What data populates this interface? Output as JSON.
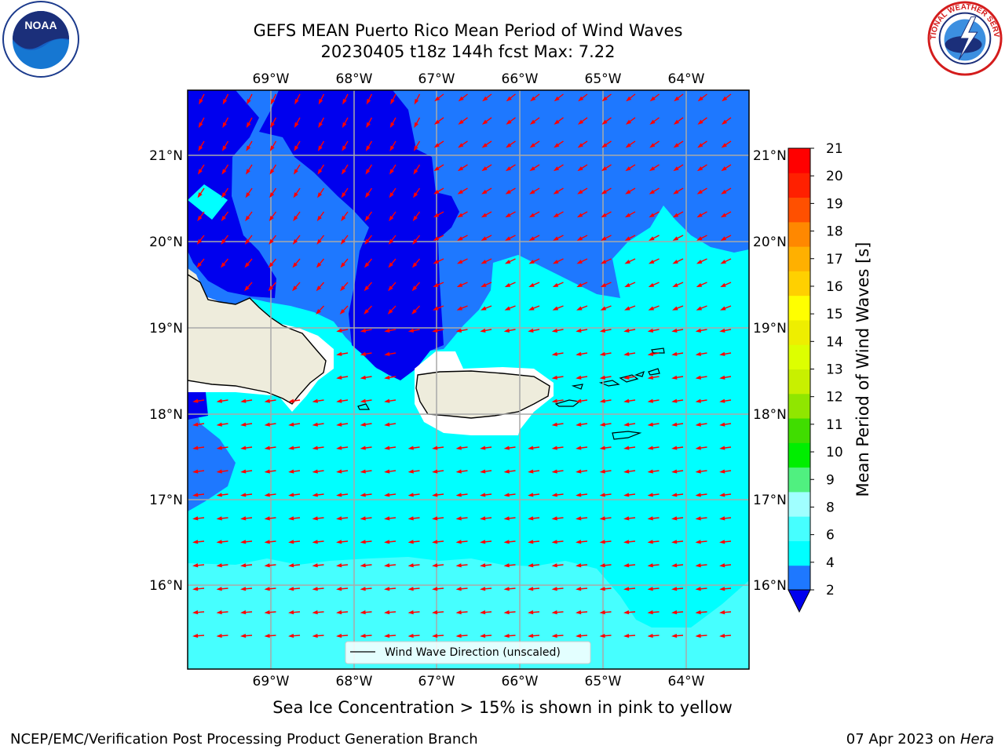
{
  "header": {
    "title_line1": "GEFS MEAN Puerto Rico Mean Period of Wind Waves",
    "title_line2": "20230405 t18z 144h fcst   Max: 7.22"
  },
  "logos": {
    "noaa": {
      "name": "noaa-logo",
      "text": "NOAA"
    },
    "nws": {
      "name": "national-weather-service-logo",
      "text": "NATIONAL WEATHER SERVICE"
    }
  },
  "map": {
    "lon_labels": [
      "69°W",
      "68°W",
      "67°W",
      "66°W",
      "65°W",
      "64°W"
    ],
    "lat_labels": [
      "21°N",
      "20°N",
      "19°N",
      "18°N",
      "17°N",
      "16°N"
    ],
    "legend_label": "Wind Wave Direction (unscaled)",
    "arrow_color": "#ff0000",
    "land_color": "#eeecdc",
    "ocean_colors": {
      "lt2": "#0000ee",
      "2to4": "#1e78ff",
      "4to6": "#00ffff",
      "6to8": "#46ffff"
    }
  },
  "colorbar": {
    "label": "Mean Period of Wind Waves [s]",
    "ticks": [
      "2",
      "4",
      "6",
      "8",
      "9",
      "10",
      "11",
      "12",
      "13",
      "14",
      "15",
      "16",
      "17",
      "18",
      "19",
      "20",
      "21"
    ],
    "colors": [
      "#1e78ff",
      "#00ffff",
      "#46ffff",
      "#a0ffff",
      "#50f080",
      "#00ee00",
      "#40dd00",
      "#90e600",
      "#c8f000",
      "#ddff00",
      "#eeee00",
      "#ffff00",
      "#ffd000",
      "#ffb000",
      "#ff8800",
      "#ff5000",
      "#ff2000",
      "#ff0000"
    ],
    "under_color": "#0000ee"
  },
  "footer": {
    "note": "Sea Ice Concentration > 15% is shown in pink to yellow",
    "left": "NCEP/EMC/Verification Post Processing Product Generation Branch",
    "right_prefix": "07 Apr 2023 on ",
    "right_host": "Hera"
  }
}
